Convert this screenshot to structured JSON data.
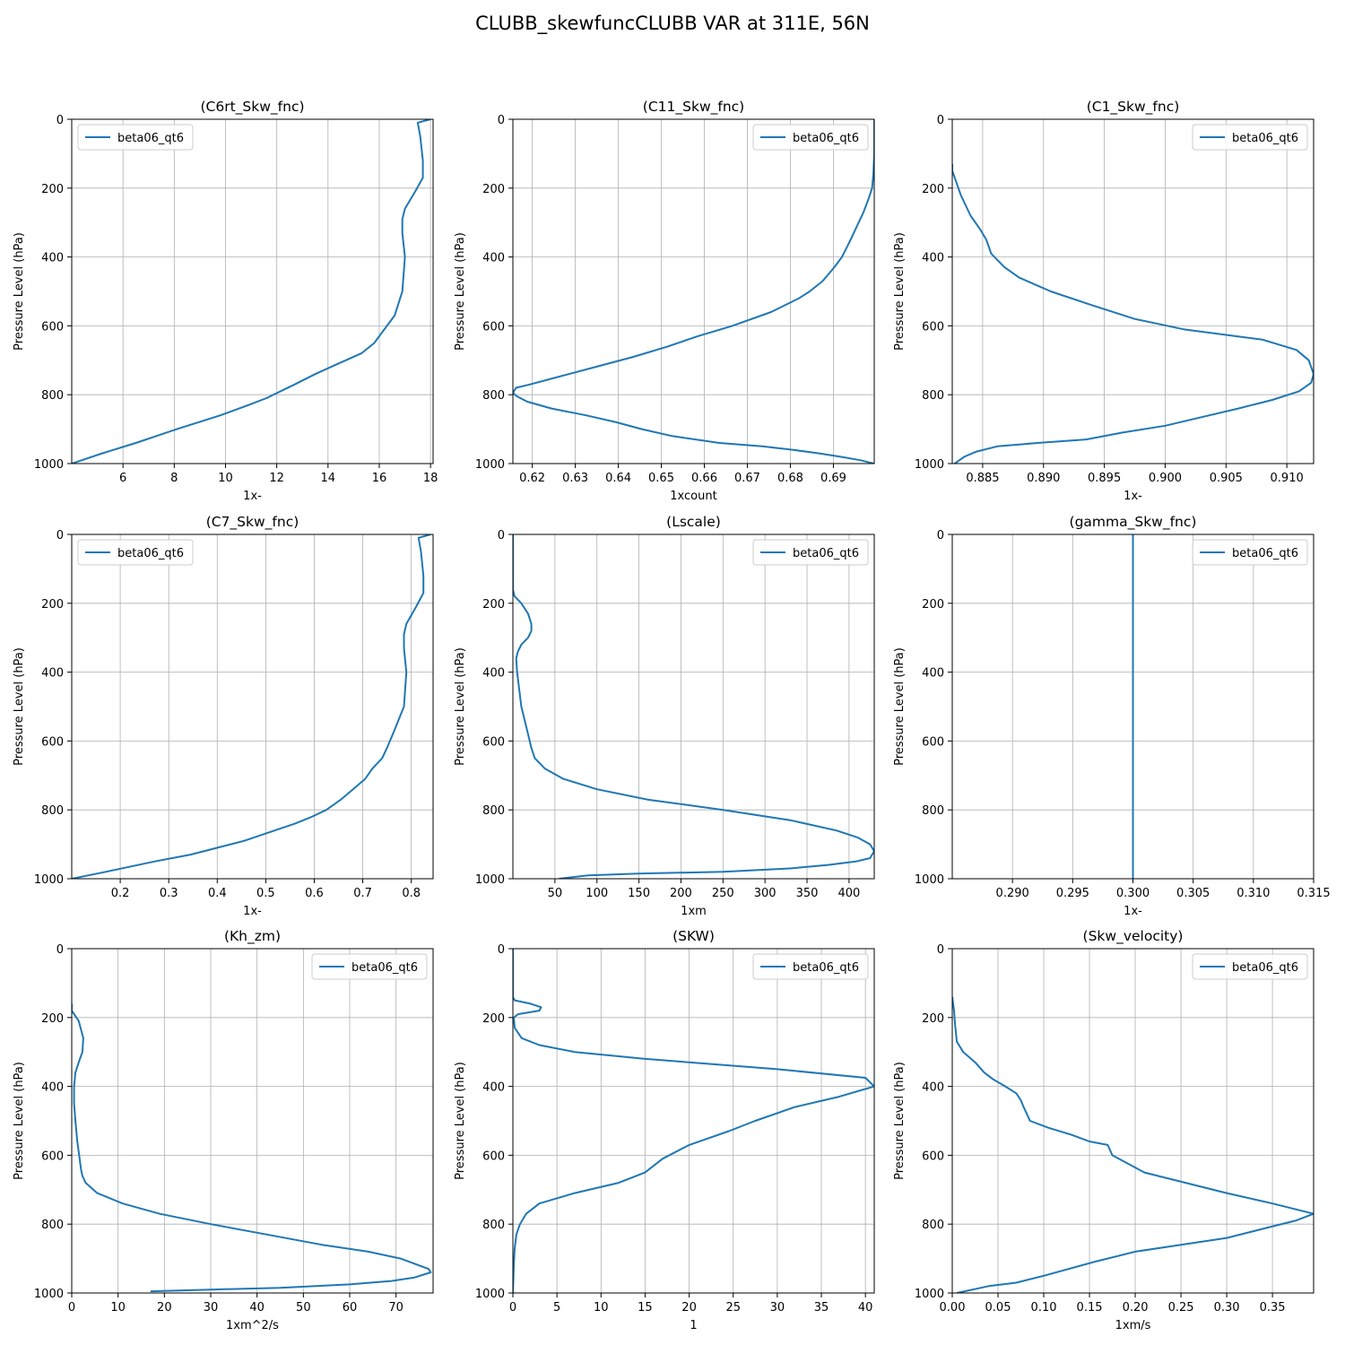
{
  "figure": {
    "title": "CLUBB_skewfuncCLUBB VAR at 311E, 56N",
    "line_color": "#1f77b4",
    "grid_color": "#b0b0b0"
  },
  "chart_data": [
    {
      "type": "line",
      "title": "(C6rt_Skw_fnc)",
      "xlabel": "1x-",
      "ylabel": "Pressure Level (hPa)",
      "xlim": [
        4.0,
        18.1
      ],
      "ylim": [
        1000,
        0
      ],
      "xticks": [
        6,
        8,
        10,
        12,
        14,
        16,
        18
      ],
      "xtick_labels": [
        "6",
        "8",
        "10",
        "12",
        "14",
        "16",
        "18"
      ],
      "yticks": [
        0,
        200,
        400,
        600,
        800,
        1000
      ],
      "grid": true,
      "legend": "upper left",
      "series": [
        {
          "name": "beta06_qt6",
          "x": [
            18.0,
            17.5,
            17.6,
            17.7,
            17.7,
            17.4,
            17.0,
            16.9,
            16.9,
            17.0,
            16.9,
            16.6,
            16.1,
            15.8,
            15.3,
            14.4,
            13.5,
            12.7,
            11.6,
            10.9,
            9.8,
            8.1,
            7.3,
            6.5,
            5.2,
            4.0
          ],
          "y": [
            0,
            10,
            50,
            120,
            170,
            210,
            260,
            290,
            330,
            400,
            500,
            570,
            620,
            650,
            680,
            710,
            740,
            770,
            810,
            830,
            860,
            900,
            920,
            940,
            970,
            1000
          ]
        }
      ]
    },
    {
      "type": "line",
      "title": "(C11_Skw_fnc)",
      "xlabel": "1xcount",
      "ylabel": "Pressure Level (hPa)",
      "xlim": [
        0.6155,
        0.6995
      ],
      "ylim": [
        1000,
        0
      ],
      "xticks": [
        0.62,
        0.63,
        0.64,
        0.65,
        0.66,
        0.67,
        0.68,
        0.69
      ],
      "xtick_labels": [
        "0.62",
        "0.63",
        "0.64",
        "0.65",
        "0.66",
        "0.67",
        "0.68",
        "0.69"
      ],
      "yticks": [
        0,
        200,
        400,
        600,
        800,
        1000
      ],
      "grid": true,
      "legend": "upper right",
      "series": [
        {
          "name": "beta06_qt6",
          "x": [
            0.6995,
            0.6995,
            0.6993,
            0.699,
            0.6982,
            0.697,
            0.6955,
            0.694,
            0.692,
            0.6902,
            0.6875,
            0.6845,
            0.682,
            0.6755,
            0.6665,
            0.6585,
            0.6515,
            0.6435,
            0.6345,
            0.6255,
            0.6195,
            0.6162,
            0.6155,
            0.6165,
            0.6188,
            0.6245,
            0.6325,
            0.6395,
            0.6455,
            0.6525,
            0.6635,
            0.6735,
            0.6805,
            0.6865,
            0.6915,
            0.6962,
            0.6995
          ],
          "y": [
            0,
            100,
            160,
            200,
            230,
            270,
            310,
            350,
            400,
            430,
            470,
            500,
            520,
            560,
            600,
            630,
            660,
            690,
            720,
            750,
            770,
            780,
            795,
            805,
            820,
            840,
            860,
            880,
            900,
            920,
            940,
            950,
            960,
            970,
            980,
            990,
            1000
          ]
        }
      ]
    },
    {
      "type": "line",
      "title": "(C1_Skw_fnc)",
      "xlabel": "1x-",
      "ylabel": "Pressure Level (hPa)",
      "xlim": [
        0.8825,
        0.9122
      ],
      "ylim": [
        1000,
        0
      ],
      "xticks": [
        0.885,
        0.89,
        0.895,
        0.9,
        0.905,
        0.91
      ],
      "xtick_labels": [
        "0.885",
        "0.890",
        "0.895",
        "0.900",
        "0.905",
        "0.910"
      ],
      "yticks": [
        0,
        200,
        400,
        600,
        800,
        1000
      ],
      "grid": true,
      "legend": "upper right",
      "series": [
        {
          "name": "beta06_qt6",
          "x": [
            0.8825,
            0.8825,
            0.8828,
            0.8832,
            0.884,
            0.8848,
            0.8853,
            0.8857,
            0.8868,
            0.888,
            0.8906,
            0.894,
            0.8975,
            0.9015,
            0.908,
            0.9108,
            0.9118,
            0.9122,
            0.912,
            0.911,
            0.9088,
            0.906,
            0.903,
            0.9,
            0.8965,
            0.8935,
            0.8895,
            0.8862,
            0.8845,
            0.8835,
            0.8827
          ],
          "y": [
            130,
            150,
            180,
            220,
            280,
            320,
            350,
            390,
            430,
            460,
            500,
            540,
            580,
            610,
            640,
            670,
            700,
            740,
            765,
            790,
            815,
            840,
            865,
            890,
            910,
            930,
            940,
            950,
            965,
            980,
            1000
          ]
        }
      ]
    },
    {
      "type": "line",
      "title": "(C7_Skw_fnc)",
      "xlabel": "1x-",
      "ylabel": "Pressure Level (hPa)",
      "xlim": [
        0.1,
        0.845
      ],
      "ylim": [
        1000,
        0
      ],
      "xticks": [
        0.2,
        0.3,
        0.4,
        0.5,
        0.6,
        0.7,
        0.8
      ],
      "xtick_labels": [
        "0.2",
        "0.3",
        "0.4",
        "0.5",
        "0.6",
        "0.7",
        "0.8"
      ],
      "yticks": [
        0,
        200,
        400,
        600,
        800,
        1000
      ],
      "grid": true,
      "legend": "upper left",
      "series": [
        {
          "name": "beta06_qt6",
          "x": [
            0.84,
            0.815,
            0.82,
            0.825,
            0.825,
            0.81,
            0.79,
            0.785,
            0.785,
            0.79,
            0.785,
            0.765,
            0.75,
            0.74,
            0.72,
            0.705,
            0.68,
            0.655,
            0.625,
            0.595,
            0.56,
            0.455,
            0.345,
            0.27,
            0.17,
            0.1
          ],
          "y": [
            0,
            10,
            50,
            120,
            170,
            210,
            260,
            290,
            330,
            400,
            500,
            570,
            620,
            650,
            680,
            710,
            740,
            770,
            800,
            820,
            840,
            890,
            930,
            950,
            980,
            1000
          ]
        }
      ]
    },
    {
      "type": "line",
      "title": "(Lscale)",
      "xlabel": "1xm",
      "ylabel": "Pressure Level (hPa)",
      "xlim": [
        0,
        430
      ],
      "ylim": [
        1000,
        0
      ],
      "xticks": [
        50,
        100,
        150,
        200,
        250,
        300,
        350,
        400
      ],
      "xtick_labels": [
        "50",
        "100",
        "150",
        "200",
        "250",
        "300",
        "350",
        "400"
      ],
      "yticks": [
        0,
        200,
        400,
        600,
        800,
        1000
      ],
      "grid": true,
      "legend": "upper right",
      "series": [
        {
          "name": "beta06_qt6",
          "x": [
            0,
            0,
            0,
            2,
            10,
            18,
            22,
            22,
            18,
            10,
            6,
            4,
            5,
            10,
            18,
            22,
            26,
            38,
            60,
            100,
            160,
            250,
            330,
            385,
            410,
            425,
            430,
            425,
            408,
            375,
            330,
            250,
            150,
            90,
            55
          ],
          "y": [
            0,
            80,
            160,
            180,
            200,
            230,
            260,
            280,
            300,
            320,
            340,
            360,
            400,
            500,
            580,
            620,
            650,
            680,
            710,
            740,
            770,
            800,
            830,
            860,
            880,
            900,
            920,
            940,
            950,
            960,
            970,
            980,
            985,
            990,
            1000
          ]
        }
      ]
    },
    {
      "type": "line",
      "title": "(gamma_Skw_fnc)",
      "xlabel": "1x-",
      "ylabel": "Pressure Level (hPa)",
      "xlim": [
        0.285,
        0.315
      ],
      "ylim": [
        1000,
        0
      ],
      "xticks": [
        0.29,
        0.295,
        0.3,
        0.305,
        0.31,
        0.315
      ],
      "xtick_labels": [
        "0.290",
        "0.295",
        "0.300",
        "0.305",
        "0.310",
        "0.315"
      ],
      "yticks": [
        0,
        200,
        400,
        600,
        800,
        1000
      ],
      "grid": true,
      "legend": "upper right",
      "series": [
        {
          "name": "beta06_qt6",
          "x": [
            0.3,
            0.3
          ],
          "y": [
            0,
            1000
          ]
        }
      ]
    },
    {
      "type": "line",
      "title": "(Kh_zm)",
      "xlabel": "1xm^2/s",
      "ylabel": "Pressure Level (hPa)",
      "xlim": [
        0,
        78
      ],
      "ylim": [
        1000,
        0
      ],
      "xticks": [
        0,
        10,
        20,
        30,
        40,
        50,
        60,
        70
      ],
      "xtick_labels": [
        "0",
        "10",
        "20",
        "30",
        "40",
        "50",
        "60",
        "70"
      ],
      "yticks": [
        0,
        200,
        400,
        600,
        800,
        1000
      ],
      "grid": true,
      "legend": "upper right",
      "series": [
        {
          "name": "beta06_qt6",
          "x": [
            0,
            0,
            1.5,
            2.5,
            2.3,
            1.5,
            0.8,
            0.5,
            0.5,
            0.8,
            1.2,
            1.7,
            2.0,
            2.3,
            3.0,
            5.5,
            11,
            19,
            30,
            42,
            54,
            64,
            71,
            75,
            77,
            77.5,
            74,
            69,
            60,
            45,
            30,
            17
          ],
          "y": [
            160,
            180,
            210,
            260,
            300,
            330,
            360,
            400,
            450,
            500,
            560,
            610,
            640,
            660,
            680,
            710,
            740,
            770,
            800,
            830,
            860,
            880,
            900,
            920,
            930,
            940,
            955,
            965,
            975,
            985,
            990,
            995
          ]
        }
      ]
    },
    {
      "type": "line",
      "title": "(SKW)",
      "xlabel": "1",
      "ylabel": "Pressure Level (hPa)",
      "xlim": [
        0,
        41
      ],
      "ylim": [
        1000,
        0
      ],
      "xticks": [
        0,
        5,
        10,
        15,
        20,
        25,
        30,
        35,
        40
      ],
      "xtick_labels": [
        "0",
        "5",
        "10",
        "15",
        "20",
        "25",
        "30",
        "35",
        "40"
      ],
      "yticks": [
        0,
        200,
        400,
        600,
        800,
        1000
      ],
      "grid": true,
      "legend": "upper right",
      "series": [
        {
          "name": "beta06_qt6",
          "x": [
            0,
            0,
            0.2,
            2.0,
            3.2,
            3.0,
            0.6,
            0.1,
            0.2,
            1.0,
            3.0,
            7.0,
            15.0,
            30.0,
            40.0,
            41.0,
            37.0,
            32.0,
            27.5,
            24.5,
            20.0,
            17.0,
            15.0,
            12.0,
            7.0,
            3.0,
            1.5,
            0.8,
            0.4,
            0.2,
            0.1,
            0
          ],
          "y": [
            0,
            140,
            150,
            160,
            170,
            180,
            190,
            200,
            230,
            260,
            280,
            300,
            320,
            350,
            375,
            400,
            430,
            460,
            500,
            530,
            570,
            610,
            650,
            680,
            710,
            740,
            770,
            800,
            830,
            870,
            920,
            1000
          ]
        }
      ]
    },
    {
      "type": "line",
      "title": "(Skw_velocity)",
      "xlabel": "1xm/s",
      "ylabel": "Pressure Level (hPa)",
      "xlim": [
        0,
        0.395
      ],
      "ylim": [
        1000,
        0
      ],
      "xticks": [
        0,
        0.05,
        0.1,
        0.15,
        0.2,
        0.25,
        0.3,
        0.35
      ],
      "xtick_labels": [
        "0.00",
        "0.05",
        "0.10",
        "0.15",
        "0.20",
        "0.25",
        "0.30",
        "0.35"
      ],
      "yticks": [
        0,
        200,
        400,
        600,
        800,
        1000
      ],
      "grid": true,
      "legend": "upper right",
      "series": [
        {
          "name": "beta06_qt6",
          "x": [
            0,
            0.002,
            0.003,
            0.005,
            0.012,
            0.025,
            0.035,
            0.045,
            0.058,
            0.07,
            0.075,
            0.078,
            0.085,
            0.105,
            0.13,
            0.15,
            0.17,
            0.175,
            0.21,
            0.255,
            0.3,
            0.35,
            0.38,
            0.395,
            0.375,
            0.345,
            0.3,
            0.25,
            0.2,
            0.155,
            0.1,
            0.07,
            0.04,
            0.005
          ],
          "y": [
            140,
            180,
            220,
            270,
            300,
            330,
            360,
            380,
            400,
            420,
            440,
            460,
            500,
            520,
            540,
            560,
            570,
            600,
            650,
            680,
            710,
            740,
            760,
            770,
            790,
            810,
            840,
            860,
            880,
            910,
            950,
            970,
            980,
            1000
          ]
        }
      ]
    }
  ]
}
